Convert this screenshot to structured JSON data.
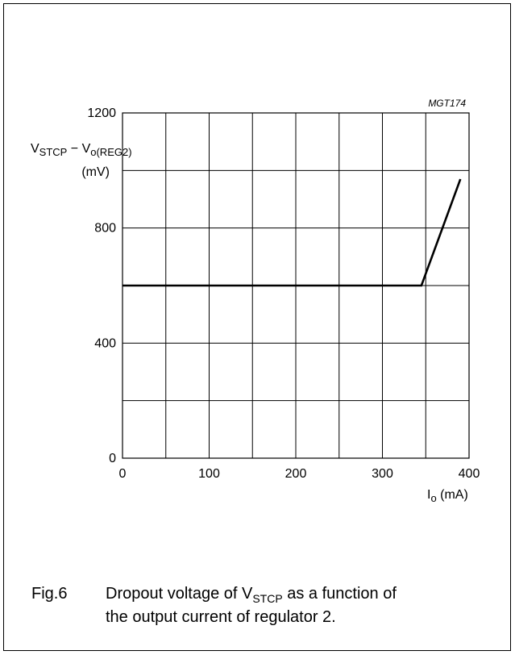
{
  "chart_data": {
    "type": "line",
    "id_label": "MGT174",
    "ylabel": {
      "v": "V",
      "s1": "STCP",
      "mid": " − V",
      "s2": "o(REG2)",
      "unit": "(mV)"
    },
    "xlabel": {
      "i": "I",
      "s": "o",
      "unit": " (mA)"
    },
    "xlim": [
      0,
      400
    ],
    "ylim": [
      0,
      1200
    ],
    "x_ticks": [
      0,
      100,
      200,
      300,
      400
    ],
    "y_ticks": [
      0,
      400,
      800,
      1200
    ],
    "x_grid_step": 50,
    "y_grid_step": 200,
    "grid": true,
    "series": [
      {
        "x": [
          0,
          345,
          390
        ],
        "y": [
          600,
          600,
          970
        ]
      }
    ]
  },
  "caption": {
    "fig": "Fig.6",
    "pre": "Dropout voltage of V",
    "sub": "STCP",
    "post": " as a function of",
    "line2": "the output current of regulator 2."
  }
}
